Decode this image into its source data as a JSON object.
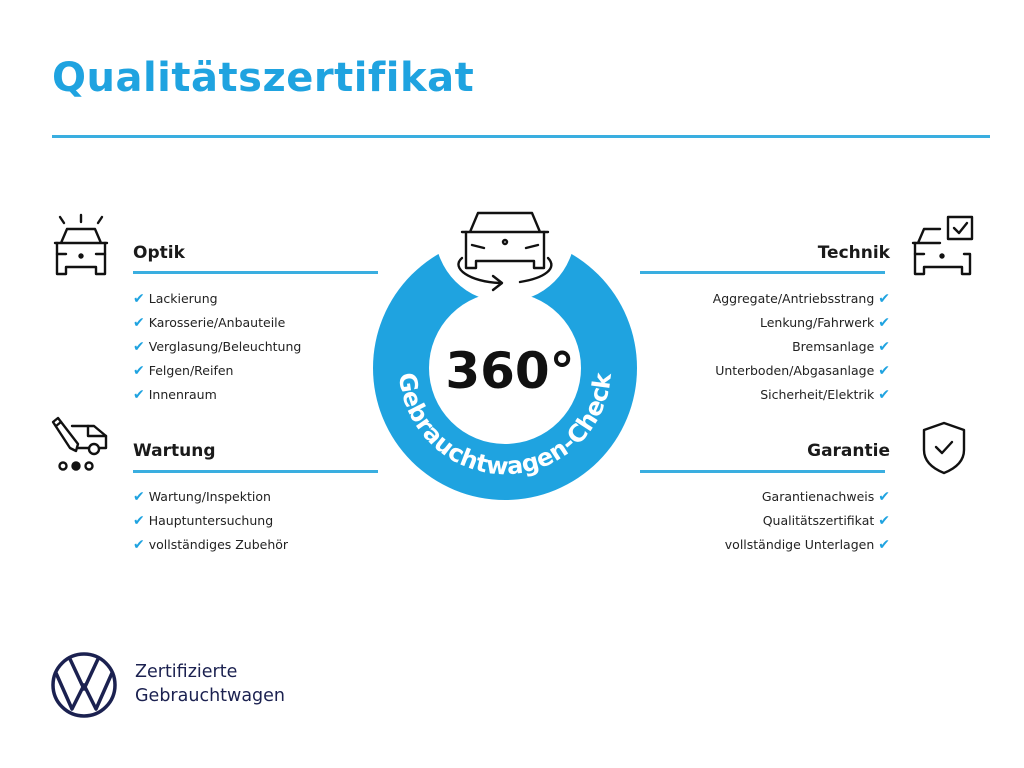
{
  "title": "Qualitätszertifikat",
  "colors": {
    "accent": "#1fa3e0",
    "brand_dark": "#1b2150",
    "text": "#1a1a1a"
  },
  "badge": {
    "number": "360°",
    "arc_text": "Gebrauchtwagen-Check",
    "icon": "car-rotate-icon"
  },
  "sections": {
    "optik": {
      "heading": "Optik",
      "icon": "car-lights-icon",
      "items": [
        "Lackierung",
        "Karosserie/Anbauteile",
        "Verglasung/Beleuchtung",
        "Felgen/Reifen",
        "Innenraum"
      ]
    },
    "wartung": {
      "heading": "Wartung",
      "icon": "service-van-icon",
      "items": [
        "Wartung/Inspektion",
        "Hauptuntersuchung",
        "vollständiges Zubehör"
      ]
    },
    "technik": {
      "heading": "Technik",
      "icon": "car-checkbox-icon",
      "items": [
        "Aggregate/Antriebsstrang",
        "Lenkung/Fahrwerk",
        "Bremsanlage",
        "Unterboden/Abgasanlage",
        "Sicherheit/Elektrik"
      ]
    },
    "garantie": {
      "heading": "Garantie",
      "icon": "shield-check-icon",
      "items": [
        "Garantienachweis",
        "Qualitätszertifikat",
        "vollständige Unterlagen"
      ]
    }
  },
  "check_glyph": "✔",
  "footer": {
    "line1": "Zertifizierte",
    "line2": "Gebrauchtwagen",
    "logo": "vw-logo"
  }
}
